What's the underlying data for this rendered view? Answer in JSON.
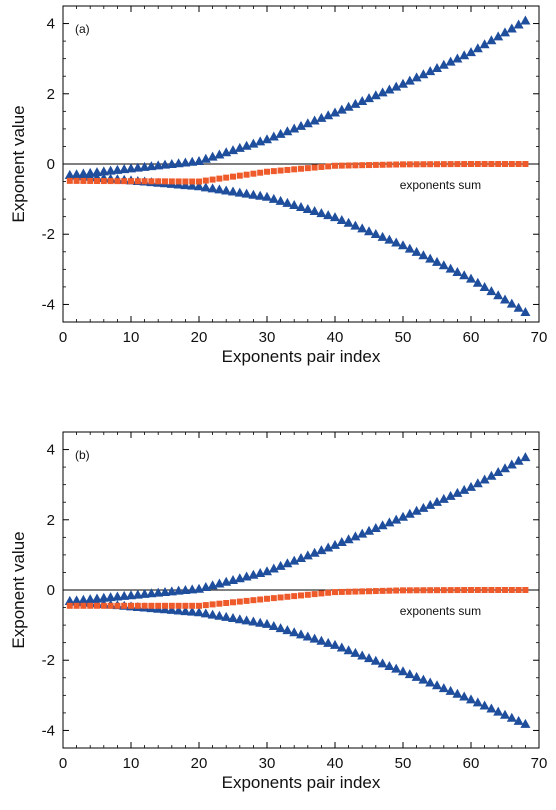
{
  "chart_data": [
    {
      "type": "scatter",
      "panel_label": "(a)",
      "xlabel": "Exponents pair index",
      "ylabel": "Exponent value",
      "xlim": [
        0,
        70
      ],
      "ylim": [
        -4.5,
        4.5
      ],
      "xticks": [
        0,
        10,
        20,
        30,
        40,
        50,
        60,
        70
      ],
      "yticks": [
        -4,
        -2,
        0,
        2,
        4
      ],
      "zero_line": true,
      "annotation": "exponents sum",
      "series": [
        {
          "role": "positive-exponents",
          "marker": "triangle",
          "color": "#1f4e9c",
          "x": [
            1,
            20,
            30,
            40,
            50,
            60,
            68
          ],
          "y": [
            -0.3,
            0.1,
            0.72,
            1.48,
            2.3,
            3.2,
            4.1
          ]
        },
        {
          "role": "negative-exponents",
          "marker": "triangle",
          "color": "#1f4e9c",
          "x": [
            1,
            20,
            30,
            40,
            50,
            60,
            68
          ],
          "y": [
            -0.3,
            -0.62,
            -0.92,
            -1.5,
            -2.3,
            -3.25,
            -4.2
          ]
        },
        {
          "role": "exponents-sum",
          "marker": "square",
          "color": "#ee5a2a",
          "x": [
            1,
            20,
            30,
            40,
            50,
            60,
            68
          ],
          "y": [
            -0.48,
            -0.5,
            -0.22,
            -0.05,
            -0.01,
            0.0,
            0.0
          ]
        }
      ]
    },
    {
      "type": "scatter",
      "panel_label": "(b)",
      "xlabel": "Exponents pair index",
      "ylabel": "Exponent value",
      "xlim": [
        0,
        70
      ],
      "ylim": [
        -4.5,
        4.5
      ],
      "xticks": [
        0,
        10,
        20,
        30,
        40,
        50,
        60,
        70
      ],
      "yticks": [
        -4,
        -2,
        0,
        2,
        4
      ],
      "zero_line": true,
      "annotation": "exponents sum",
      "series": [
        {
          "role": "positive-exponents",
          "marker": "triangle",
          "color": "#1f4e9c",
          "x": [
            1,
            20,
            30,
            40,
            50,
            60,
            68
          ],
          "y": [
            -0.3,
            0.05,
            0.55,
            1.3,
            2.1,
            2.95,
            3.8
          ]
        },
        {
          "role": "negative-exponents",
          "marker": "triangle",
          "color": "#1f4e9c",
          "x": [
            1,
            20,
            30,
            40,
            50,
            60,
            68
          ],
          "y": [
            -0.3,
            -0.62,
            -0.95,
            -1.55,
            -2.3,
            -3.1,
            -3.8
          ]
        },
        {
          "role": "exponents-sum",
          "marker": "square",
          "color": "#ee5a2a",
          "x": [
            1,
            20,
            30,
            40,
            50,
            60,
            68
          ],
          "y": [
            -0.45,
            -0.45,
            -0.25,
            -0.06,
            -0.01,
            0.0,
            0.0
          ]
        }
      ]
    }
  ]
}
